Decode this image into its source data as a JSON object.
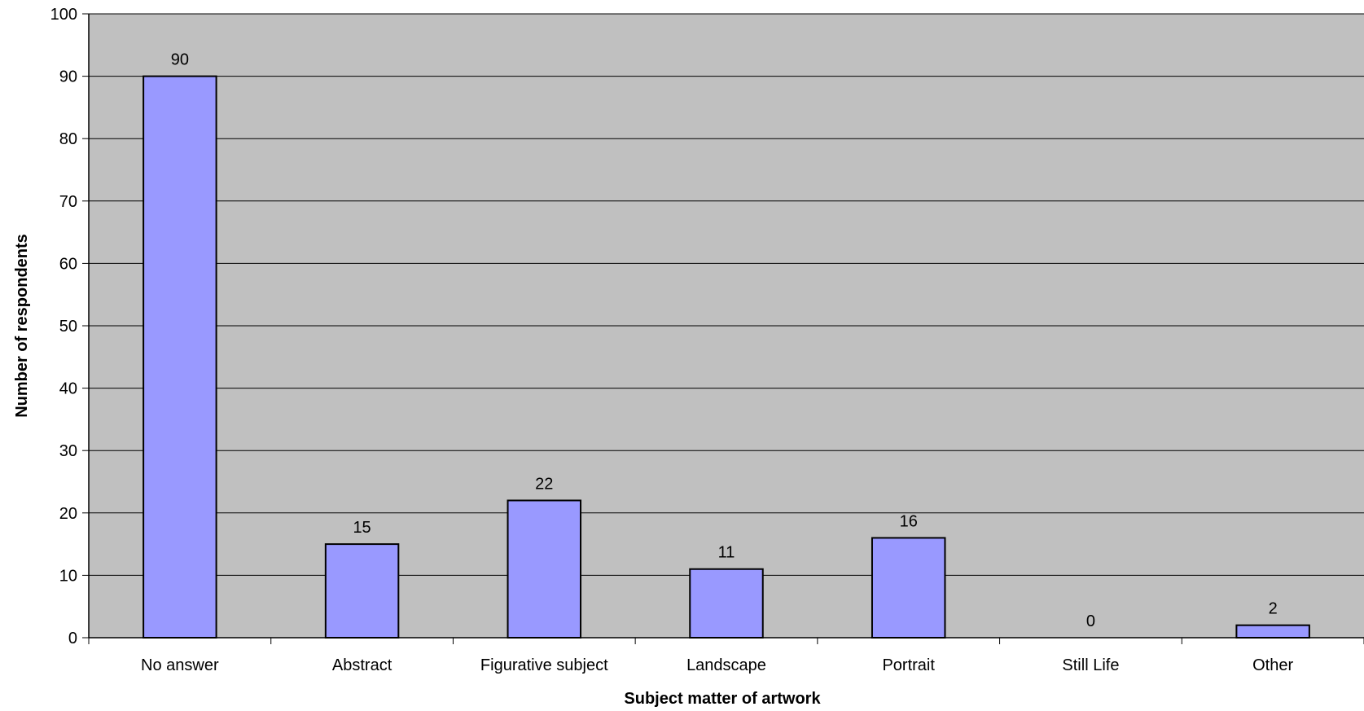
{
  "chart_data": {
    "type": "bar",
    "title": "",
    "xlabel": "Subject matter of artwork",
    "ylabel": "Number of respondents",
    "categories": [
      "No answer",
      "Abstract",
      "Figurative subject",
      "Landscape",
      "Portrait",
      "Still Life",
      "Other"
    ],
    "values": [
      90,
      15,
      22,
      11,
      16,
      0,
      2
    ],
    "data_labels": [
      "90",
      "15",
      "22",
      "11",
      "16",
      "0",
      "2"
    ],
    "ylim": [
      0,
      100
    ],
    "yticks": [
      "0",
      "10",
      "20",
      "30",
      "40",
      "50",
      "60",
      "70",
      "80",
      "90",
      "100"
    ],
    "grid": true,
    "legend": "none",
    "colors": {
      "bar_fill": "#9999ff",
      "bar_stroke": "#000000",
      "plot_background": "#c0c0c0",
      "gridline": "#000000",
      "page_background": "#ffffff"
    }
  }
}
